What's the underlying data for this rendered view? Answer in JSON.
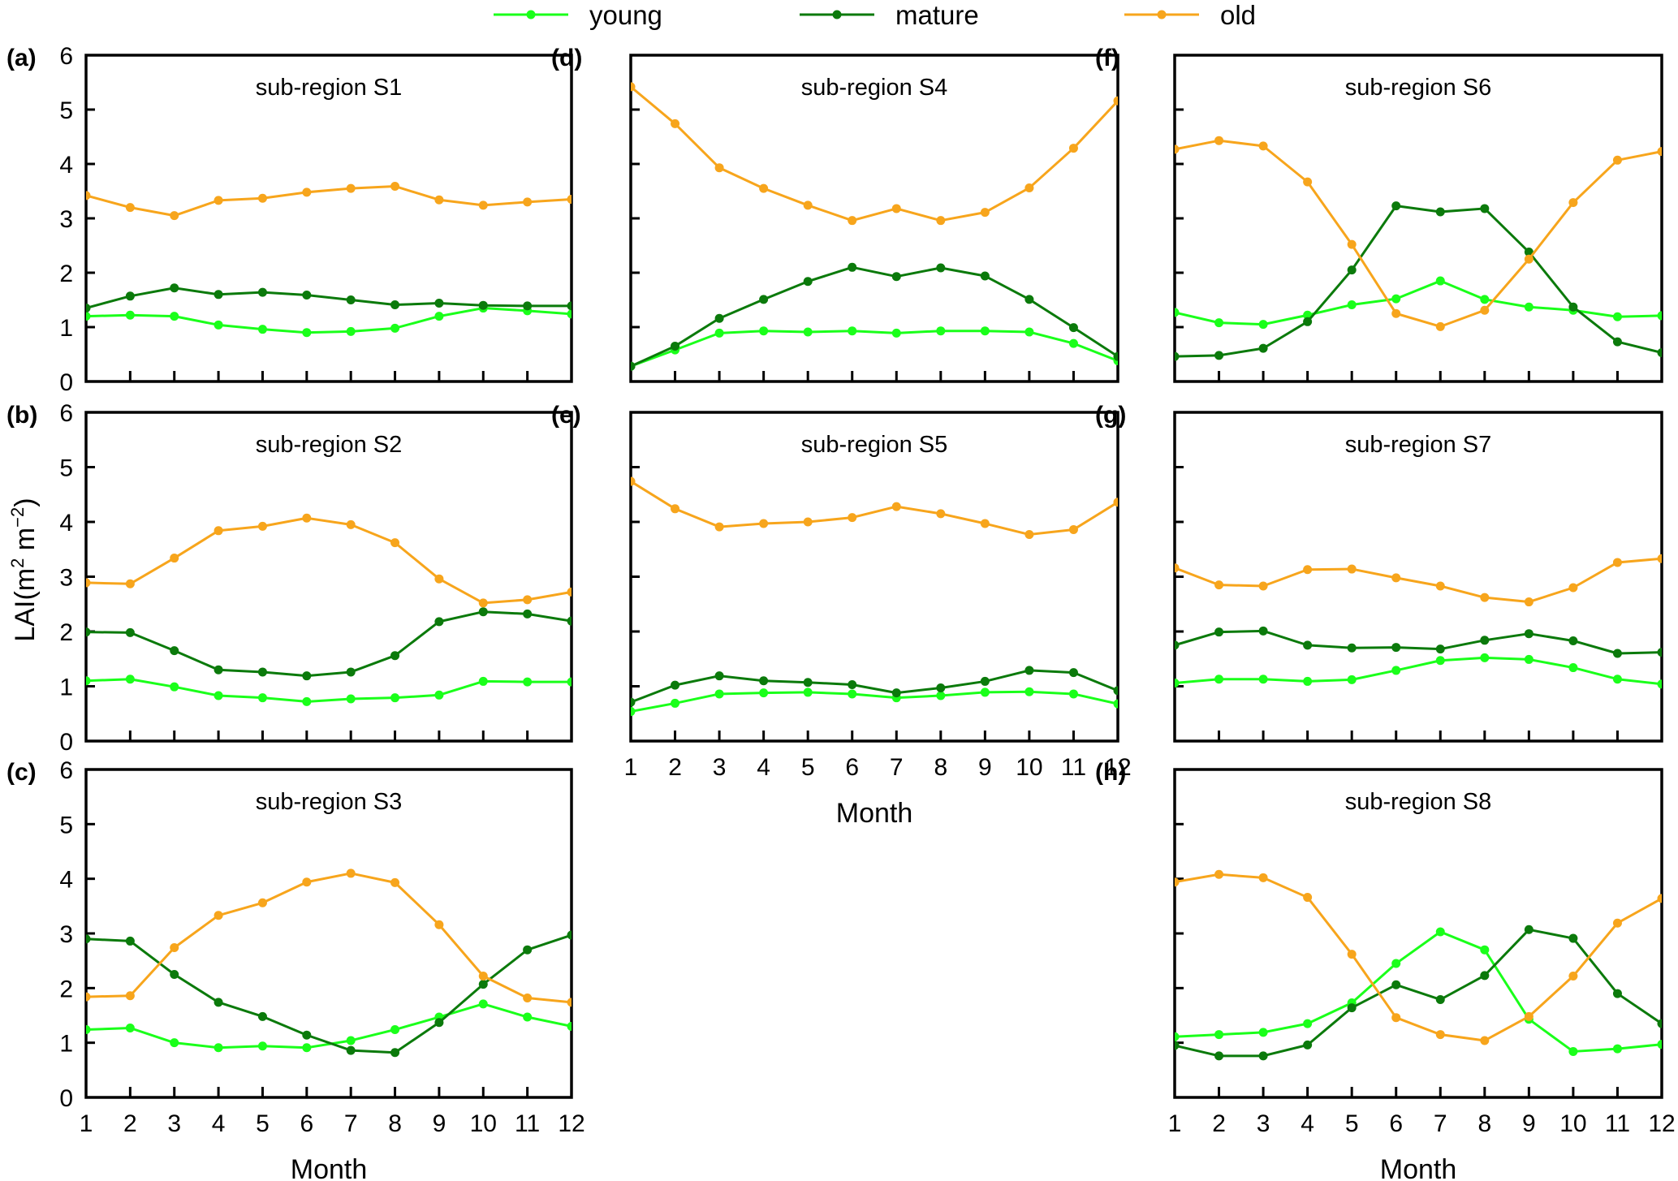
{
  "chart_data": {
    "type": "line",
    "figure_ylabel": "LAI(m² m⁻²)",
    "ylabel_base": "LAI(m",
    "ylabel_sup1": "2",
    "ylabel_mid": " m",
    "ylabel_sup2": "−2",
    "ylabel_end": ")",
    "xlabel": "Month",
    "x": [
      1,
      2,
      3,
      4,
      5,
      6,
      7,
      8,
      9,
      10,
      11,
      12
    ],
    "xtick_labels": [
      "1",
      "2",
      "3",
      "4",
      "5",
      "6",
      "7",
      "8",
      "9",
      "10",
      "11",
      "12"
    ],
    "ylim": [
      0,
      6
    ],
    "yticks": [
      0,
      1,
      2,
      3,
      4,
      5,
      6
    ],
    "ytick_labels": [
      "0",
      "1",
      "2",
      "3",
      "4",
      "5",
      "6"
    ],
    "grid": false,
    "legend": {
      "placement": "top-center",
      "entries": [
        {
          "key": "young",
          "label": "young",
          "color": "#1aff1a"
        },
        {
          "key": "mature",
          "label": "mature",
          "color": "#0b7a0b"
        },
        {
          "key": "old",
          "label": "old",
          "color": "#f7a51c"
        }
      ]
    },
    "panels": [
      {
        "id": "a",
        "letter": "(a)",
        "title": "sub-region S1",
        "show_yticklabels": true,
        "show_xticklabels": false,
        "show_xlabel": false,
        "series": [
          {
            "name": "young",
            "values": [
              1.2,
              1.22,
              1.2,
              1.04,
              0.96,
              0.9,
              0.92,
              0.98,
              1.2,
              1.35,
              1.3,
              1.24
            ]
          },
          {
            "name": "mature",
            "values": [
              1.35,
              1.57,
              1.72,
              1.6,
              1.64,
              1.59,
              1.5,
              1.41,
              1.44,
              1.4,
              1.39,
              1.39
            ]
          },
          {
            "name": "old",
            "values": [
              3.42,
              3.2,
              3.05,
              3.33,
              3.37,
              3.48,
              3.55,
              3.59,
              3.34,
              3.24,
              3.3,
              3.35
            ]
          }
        ]
      },
      {
        "id": "b",
        "letter": "(b)",
        "title": "sub-region S2",
        "show_yticklabels": true,
        "show_xticklabels": false,
        "show_xlabel": false,
        "series": [
          {
            "name": "young",
            "values": [
              1.1,
              1.13,
              0.99,
              0.83,
              0.79,
              0.72,
              0.77,
              0.79,
              0.84,
              1.09,
              1.08,
              1.08
            ]
          },
          {
            "name": "mature",
            "values": [
              1.99,
              1.98,
              1.65,
              1.3,
              1.26,
              1.19,
              1.26,
              1.56,
              2.18,
              2.36,
              2.32,
              2.19
            ]
          },
          {
            "name": "old",
            "values": [
              2.89,
              2.87,
              3.34,
              3.84,
              3.92,
              4.07,
              3.95,
              3.62,
              2.96,
              2.52,
              2.58,
              2.72
            ]
          }
        ]
      },
      {
        "id": "c",
        "letter": "(c)",
        "title": "sub-region S3",
        "show_yticklabels": true,
        "show_xticklabels": true,
        "show_xlabel": true,
        "series": [
          {
            "name": "young",
            "values": [
              1.24,
              1.27,
              1.0,
              0.91,
              0.94,
              0.91,
              1.04,
              1.24,
              1.47,
              1.71,
              1.47,
              1.3
            ]
          },
          {
            "name": "mature",
            "values": [
              2.9,
              2.86,
              2.25,
              1.74,
              1.48,
              1.14,
              0.86,
              0.82,
              1.37,
              2.07,
              2.7,
              2.97
            ]
          },
          {
            "name": "old",
            "values": [
              1.84,
              1.86,
              2.74,
              3.33,
              3.56,
              3.94,
              4.1,
              3.93,
              3.16,
              2.22,
              1.82,
              1.74
            ]
          }
        ]
      },
      {
        "id": "d",
        "letter": "(d)",
        "title": "sub-region S4",
        "show_yticklabels": false,
        "show_xticklabels": false,
        "show_xlabel": false,
        "series": [
          {
            "name": "young",
            "values": [
              0.28,
              0.58,
              0.89,
              0.93,
              0.91,
              0.93,
              0.89,
              0.93,
              0.93,
              0.91,
              0.7,
              0.38
            ]
          },
          {
            "name": "mature",
            "values": [
              0.28,
              0.65,
              1.16,
              1.51,
              1.84,
              2.1,
              1.93,
              2.09,
              1.94,
              1.51,
              0.99,
              0.46
            ]
          },
          {
            "name": "old",
            "values": [
              5.42,
              4.74,
              3.93,
              3.55,
              3.24,
              2.96,
              3.18,
              2.96,
              3.11,
              3.56,
              4.29,
              5.16
            ]
          }
        ]
      },
      {
        "id": "e",
        "letter": "(e)",
        "title": "sub-region S5",
        "show_yticklabels": false,
        "show_xticklabels": true,
        "show_xlabel": true,
        "series": [
          {
            "name": "young",
            "values": [
              0.54,
              0.69,
              0.86,
              0.88,
              0.89,
              0.86,
              0.79,
              0.83,
              0.89,
              0.9,
              0.86,
              0.68
            ]
          },
          {
            "name": "mature",
            "values": [
              0.71,
              1.02,
              1.19,
              1.1,
              1.07,
              1.03,
              0.88,
              0.97,
              1.09,
              1.29,
              1.25,
              0.92
            ]
          },
          {
            "name": "old",
            "values": [
              4.74,
              4.24,
              3.91,
              3.97,
              4.0,
              4.08,
              4.28,
              4.15,
              3.97,
              3.77,
              3.86,
              4.36
            ]
          }
        ]
      },
      {
        "id": "f",
        "letter": "(f)",
        "title": "sub-region S6",
        "show_yticklabels": false,
        "show_xticklabels": false,
        "show_xlabel": false,
        "series": [
          {
            "name": "young",
            "values": [
              1.27,
              1.08,
              1.05,
              1.22,
              1.41,
              1.52,
              1.85,
              1.51,
              1.37,
              1.31,
              1.19,
              1.21
            ]
          },
          {
            "name": "mature",
            "values": [
              0.46,
              0.48,
              0.61,
              1.1,
              2.05,
              3.23,
              3.12,
              3.18,
              2.38,
              1.37,
              0.73,
              0.53
            ]
          },
          {
            "name": "old",
            "values": [
              4.27,
              4.43,
              4.33,
              3.67,
              2.52,
              1.25,
              1.01,
              1.31,
              2.25,
              3.29,
              4.07,
              4.23
            ]
          }
        ]
      },
      {
        "id": "g",
        "letter": "(g)",
        "title": "sub-region S7",
        "show_yticklabels": false,
        "show_xticklabels": false,
        "show_xlabel": false,
        "series": [
          {
            "name": "young",
            "values": [
              1.06,
              1.13,
              1.13,
              1.09,
              1.12,
              1.29,
              1.47,
              1.52,
              1.49,
              1.34,
              1.13,
              1.04
            ]
          },
          {
            "name": "mature",
            "values": [
              1.75,
              1.99,
              2.01,
              1.75,
              1.7,
              1.71,
              1.68,
              1.84,
              1.96,
              1.83,
              1.6,
              1.62
            ]
          },
          {
            "name": "old",
            "values": [
              3.16,
              2.85,
              2.83,
              3.13,
              3.14,
              2.98,
              2.83,
              2.62,
              2.54,
              2.8,
              3.26,
              3.33
            ]
          }
        ]
      },
      {
        "id": "h",
        "letter": "(h)",
        "title": "sub-region S8",
        "show_yticklabels": false,
        "show_xticklabels": true,
        "show_xlabel": true,
        "series": [
          {
            "name": "young",
            "values": [
              1.11,
              1.15,
              1.19,
              1.35,
              1.73,
              2.45,
              3.03,
              2.7,
              1.43,
              0.84,
              0.89,
              0.97
            ]
          },
          {
            "name": "mature",
            "values": [
              0.95,
              0.76,
              0.76,
              0.96,
              1.64,
              2.06,
              1.79,
              2.23,
              3.07,
              2.91,
              1.9,
              1.35
            ]
          },
          {
            "name": "old",
            "values": [
              3.94,
              4.08,
              4.02,
              3.66,
              2.62,
              1.46,
              1.15,
              1.04,
              1.48,
              2.22,
              3.19,
              3.64
            ]
          }
        ]
      }
    ]
  }
}
